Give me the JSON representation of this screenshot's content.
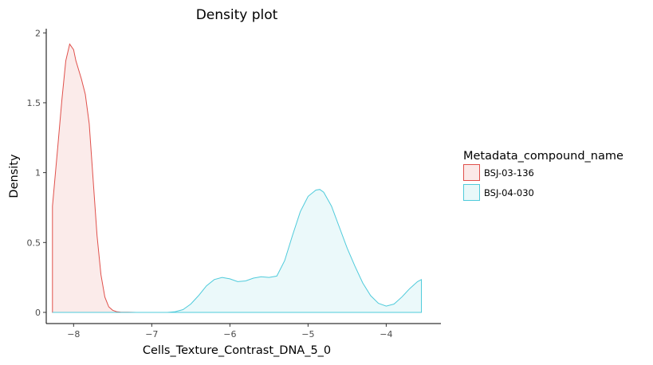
{
  "chart_data": {
    "type": "area",
    "title": "Density plot",
    "xlabel": "Cells_Texture_Contrast_DNA_5_0",
    "ylabel": "Density",
    "xlim": [
      -8.35,
      -3.3
    ],
    "ylim": [
      -0.08,
      2.03
    ],
    "x_ticks": [
      -8,
      -7,
      -6,
      -5,
      -4
    ],
    "x_tick_labels": [
      "−8",
      "−7",
      "−6",
      "−5",
      "−4"
    ],
    "y_ticks": [
      0,
      0.5,
      1,
      1.5,
      2
    ],
    "y_tick_labels": [
      "0",
      "0.5",
      "1",
      "1.5",
      "2"
    ],
    "grid": false,
    "legend": {
      "title": "Metadata_compound_name",
      "position": "right"
    },
    "series": [
      {
        "name": "BSJ-03-136",
        "color": "#e0504b",
        "fill": "#fbe9e8",
        "x": [
          -8.27,
          -8.2,
          -8.15,
          -8.1,
          -8.05,
          -8.0,
          -7.97,
          -7.9,
          -7.85,
          -7.8,
          -7.75,
          -7.7,
          -7.65,
          -7.6,
          -7.55,
          -7.5,
          -7.45,
          -7.4,
          -7.3,
          -7.2,
          -7.0,
          -6.5,
          -6.0,
          -5.5,
          -5.0,
          -4.5,
          -4.0,
          -3.55
        ],
        "y": [
          0.76,
          1.2,
          1.52,
          1.8,
          1.92,
          1.88,
          1.8,
          1.67,
          1.56,
          1.35,
          0.95,
          0.55,
          0.27,
          0.11,
          0.04,
          0.015,
          0.005,
          0.002,
          0.001,
          0.0,
          0.0,
          0.0,
          0.0,
          0.0,
          0.0,
          0.0,
          0.0,
          0.0
        ]
      },
      {
        "name": "BSJ-04-030",
        "color": "#4fcbdb",
        "fill": "#e9f8f9",
        "x": [
          -8.27,
          -7.5,
          -7.0,
          -6.8,
          -6.7,
          -6.6,
          -6.5,
          -6.4,
          -6.3,
          -6.2,
          -6.1,
          -6.0,
          -5.9,
          -5.8,
          -5.7,
          -5.6,
          -5.5,
          -5.4,
          -5.3,
          -5.2,
          -5.1,
          -5.0,
          -4.9,
          -4.85,
          -4.8,
          -4.7,
          -4.6,
          -4.5,
          -4.4,
          -4.3,
          -4.2,
          -4.1,
          -4.0,
          -3.9,
          -3.8,
          -3.7,
          -3.6,
          -3.55
        ],
        "y": [
          0.0,
          0.0,
          0.0,
          0.0,
          0.005,
          0.02,
          0.06,
          0.12,
          0.19,
          0.235,
          0.25,
          0.24,
          0.22,
          0.225,
          0.245,
          0.255,
          0.25,
          0.26,
          0.37,
          0.55,
          0.72,
          0.83,
          0.875,
          0.88,
          0.86,
          0.76,
          0.61,
          0.46,
          0.33,
          0.21,
          0.12,
          0.065,
          0.045,
          0.06,
          0.11,
          0.17,
          0.22,
          0.235
        ]
      }
    ]
  }
}
